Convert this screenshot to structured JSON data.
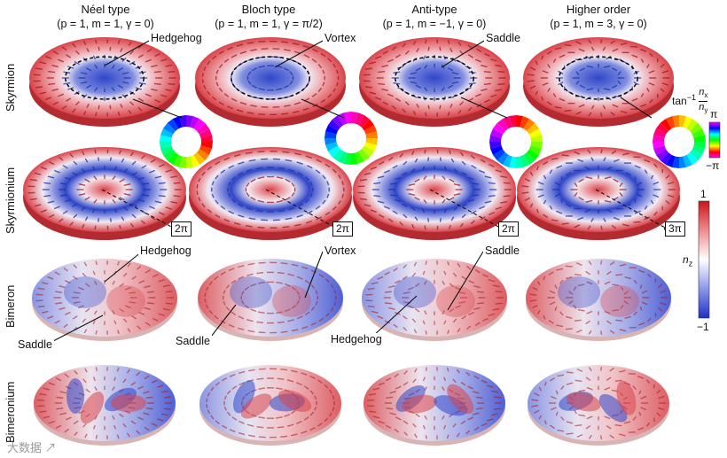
{
  "columns": [
    {
      "title": "Néel type",
      "params": "(p = 1, m = 1, γ = 0)"
    },
    {
      "title": "Bloch type",
      "params": "(p = 1, m = 1, γ = π/2)"
    },
    {
      "title": "Anti-type",
      "params": "(p = 1, m = −1, γ = 0)"
    },
    {
      "title": "Higher order",
      "params": "(p = 1, m = 3, γ = 0)"
    }
  ],
  "rows": [
    "Skyrmion",
    "Skyrmionium",
    "Bimeron",
    "Bimeronium"
  ],
  "callouts": {
    "skyrmion": [
      "Hedgehog",
      "Vortex",
      "Saddle"
    ],
    "bimeron": {
      "hedgehog_1": "Hedgehog",
      "saddle_1": "Saddle",
      "vortex": "Vortex",
      "saddle_2": "Saddle",
      "saddle_3": "Saddle",
      "hedgehog_2": "Hedgehog"
    }
  },
  "phase_labels": [
    "2π",
    "2π",
    "2π",
    "3π"
  ],
  "colorbars": {
    "phase": {
      "title_prefix": "tan",
      "title_sup": "−1",
      "title_num": "n",
      "title_num_sub": "x",
      "title_den": "n",
      "title_den_sub": "y",
      "top": "π",
      "bottom": "−π"
    },
    "nz": {
      "title": "n",
      "title_sub": "z",
      "top": "1",
      "bottom": "−1",
      "colors": [
        "#d7191c",
        "#ffffff",
        "#2c3fd6"
      ]
    }
  },
  "colors": {
    "red": "#d9444a",
    "blue": "#3046c8",
    "pale": "#f1eef4"
  },
  "watermark": "大数据 ↗"
}
